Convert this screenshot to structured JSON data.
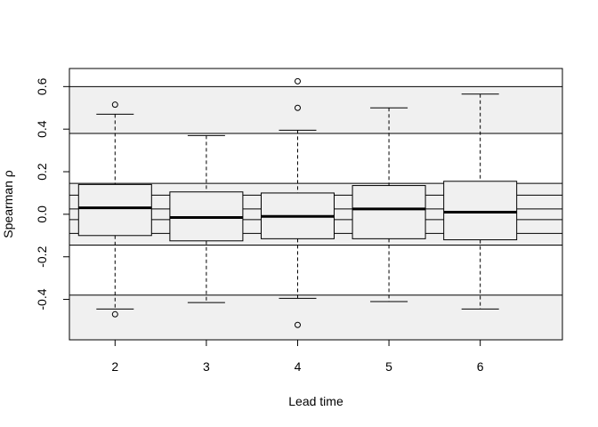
{
  "chart_data": {
    "type": "box",
    "title": "",
    "xlabel": "Lead time",
    "ylabel": "Spearman ρ",
    "categories": [
      "2",
      "3",
      "4",
      "5",
      "6"
    ],
    "x_range": [
      0.5,
      5.9
    ],
    "ylim": [
      -0.59,
      0.685
    ],
    "yticks": [
      -0.4,
      -0.2,
      0.0,
      0.2,
      0.4,
      0.6
    ],
    "ytick_labels": [
      "-0.4",
      "-0.2",
      "0.0",
      "0.2",
      "0.4",
      "0.6"
    ],
    "grid": false,
    "bands": [
      {
        "from": 0.38,
        "to": 0.6,
        "fill": "#f0f0f0"
      },
      {
        "from": -0.6,
        "to": -0.38,
        "fill": "#f0f0f0"
      },
      {
        "from": -0.145,
        "to": 0.145,
        "fill": "#f0f0f0"
      }
    ],
    "reference_lines": [
      -0.38,
      -0.145,
      -0.09,
      -0.025,
      0.025,
      0.09,
      0.145,
      0.38,
      0.6
    ],
    "boxes": [
      {
        "label": "2",
        "whisker_low": -0.445,
        "q1": -0.1,
        "median": 0.03,
        "q3": 0.14,
        "whisker_high": 0.47,
        "outliers": [
          0.515,
          -0.47
        ]
      },
      {
        "label": "3",
        "whisker_low": -0.415,
        "q1": -0.125,
        "median": -0.015,
        "q3": 0.105,
        "whisker_high": 0.37,
        "outliers": []
      },
      {
        "label": "4",
        "whisker_low": -0.395,
        "q1": -0.115,
        "median": -0.01,
        "q3": 0.1,
        "whisker_high": 0.395,
        "outliers": [
          0.625,
          0.5,
          -0.52
        ]
      },
      {
        "label": "5",
        "whisker_low": -0.41,
        "q1": -0.115,
        "median": 0.025,
        "q3": 0.135,
        "whisker_high": 0.5,
        "outliers": []
      },
      {
        "label": "6",
        "whisker_low": -0.445,
        "q1": -0.12,
        "median": 0.01,
        "q3": 0.155,
        "whisker_high": 0.565,
        "outliers": []
      }
    ],
    "colors": {
      "band": "#f0f0f0",
      "box_fill": "#f0f0f0",
      "stroke": "#000000"
    }
  }
}
